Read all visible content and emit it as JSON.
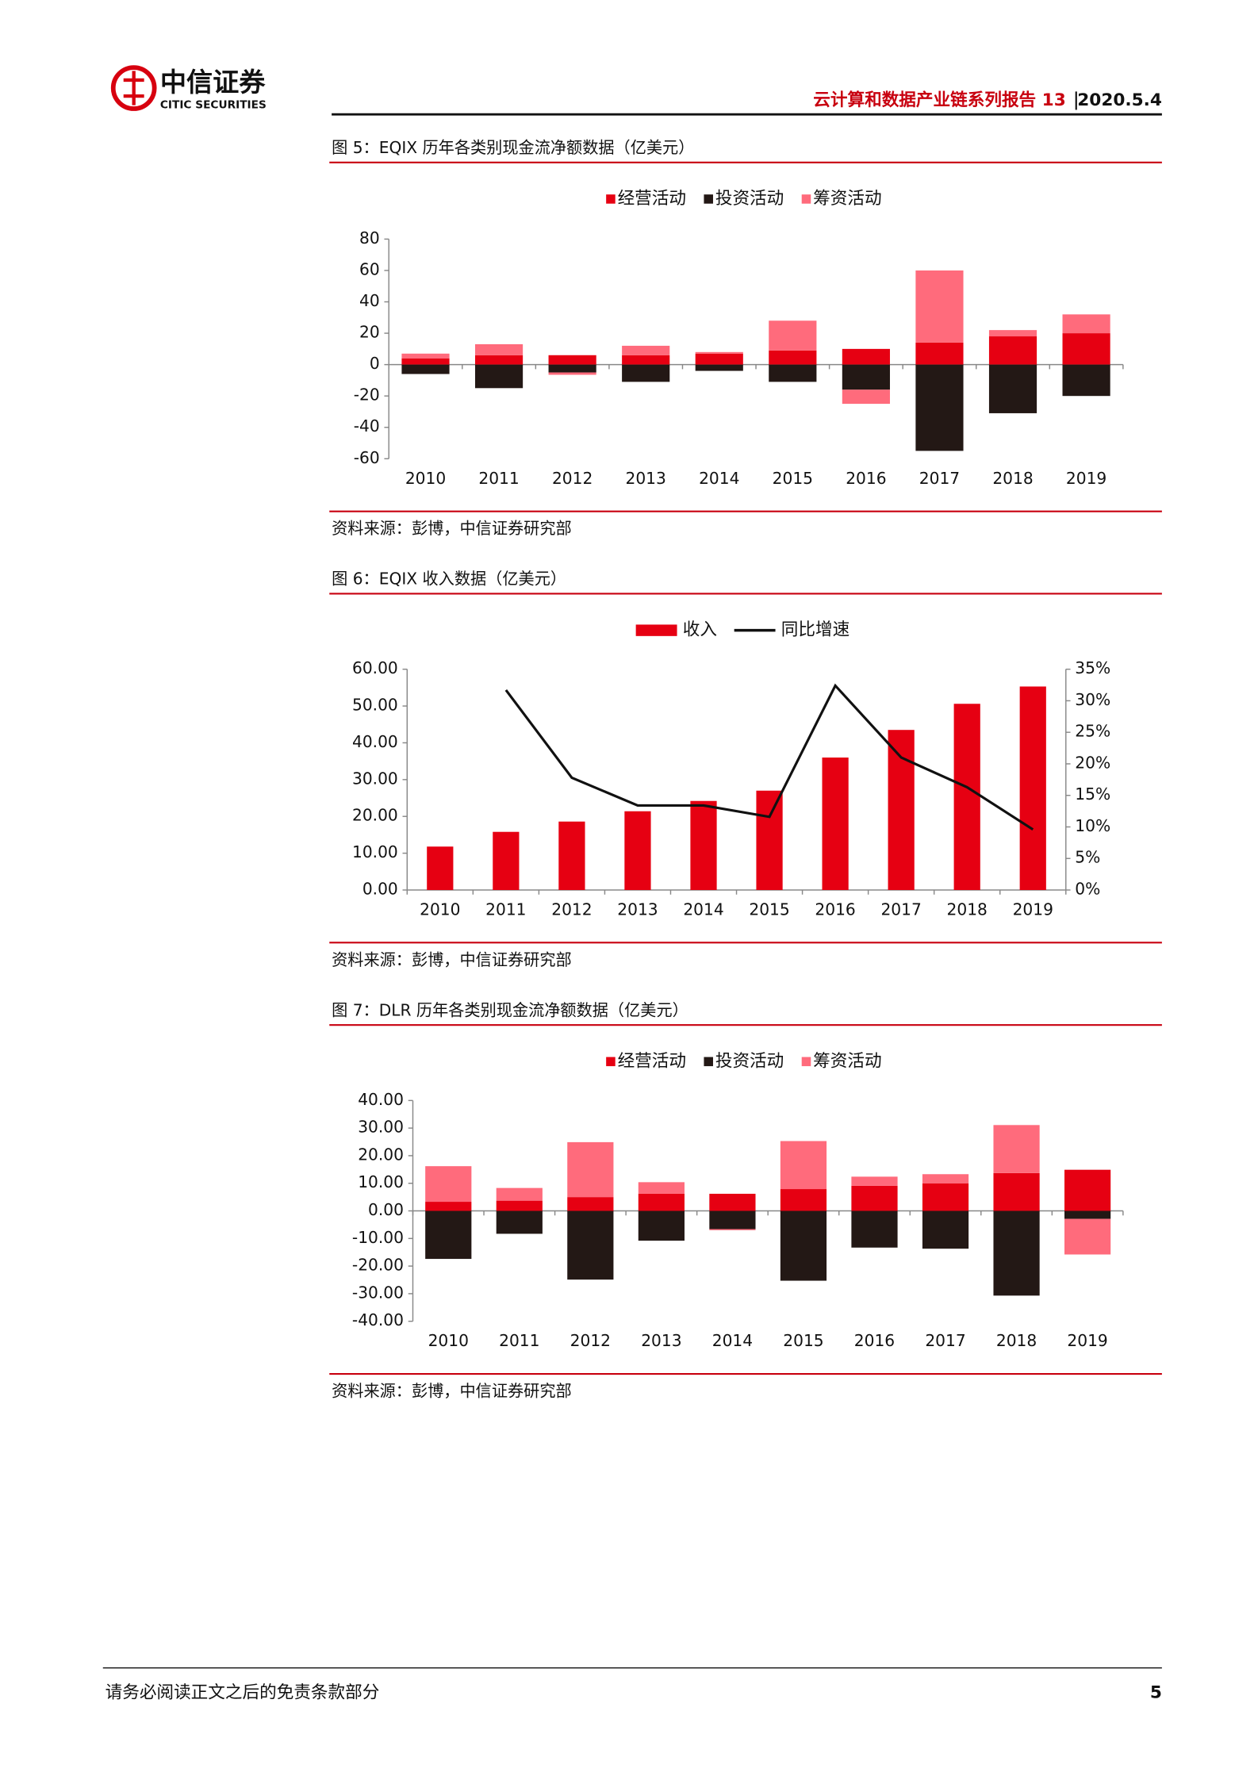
{
  "header": {
    "brand": "中信证券",
    "brand_en": "CITIC SECURITIES",
    "report": "云计算和数据产业链系列报告 13",
    "date": "2020.5.4"
  },
  "chart_data": [
    {
      "type": "stacked",
      "title": "图 5：EQIX 历年各类别现金流净额数据（亿美元）",
      "source": "资料来源：彭博，中信证券研究部",
      "categories": [
        "2010",
        "2011",
        "2012",
        "2013",
        "2014",
        "2015",
        "2016",
        "2017",
        "2018",
        "2019"
      ],
      "series": [
        {
          "name": "经营活动",
          "color": "#e60012",
          "values": [
            4,
            6,
            6,
            6,
            7,
            9,
            10,
            14,
            18,
            20
          ]
        },
        {
          "name": "投资活动",
          "color": "#231815",
          "values": [
            -6,
            -15,
            -5,
            -11,
            -4,
            -11,
            -16,
            -55,
            -31,
            -20
          ]
        },
        {
          "name": "筹资活动",
          "color": "#ff6b7c",
          "values": [
            3,
            7,
            -1.5,
            6,
            1,
            19,
            -9,
            46,
            4,
            12
          ]
        }
      ],
      "ylim": [
        -60,
        80
      ],
      "yticks": [
        -60,
        -40,
        -20,
        0,
        20,
        40,
        60,
        80
      ]
    },
    {
      "type": "combo",
      "title": "图 6：EQIX 收入数据（亿美元）",
      "source": "资料来源：彭博，中信证券研究部",
      "categories": [
        "2010",
        "2011",
        "2012",
        "2013",
        "2014",
        "2015",
        "2016",
        "2017",
        "2018",
        "2019"
      ],
      "series": [
        {
          "name": "收入",
          "color": "#e60012",
          "values": [
            11.8,
            15.8,
            18.6,
            21.4,
            24.2,
            27.0,
            36.0,
            43.5,
            50.6,
            55.3
          ]
        },
        {
          "name": "同比增速",
          "color": "#111111",
          "axis": "y2",
          "values": [
            null,
            31.7,
            17.8,
            13.4,
            13.4,
            11.6,
            32.4,
            21.0,
            16.3,
            9.6
          ]
        }
      ],
      "ylim": [
        0,
        60
      ],
      "yticks": [
        {
          "value": 0,
          "label": "0.00"
        },
        {
          "value": 10,
          "label": "10.00"
        },
        {
          "value": 20,
          "label": "20.00"
        },
        {
          "value": 30,
          "label": "30.00"
        },
        {
          "value": 40,
          "label": "40.00"
        },
        {
          "value": 50,
          "label": "50.00"
        },
        {
          "value": 60,
          "label": "60.00"
        }
      ],
      "y2lim": [
        0,
        35
      ],
      "y2ticks": [
        {
          "value": 0,
          "label": "0%"
        },
        {
          "value": 5,
          "label": "5%"
        },
        {
          "value": 10,
          "label": "10%"
        },
        {
          "value": 15,
          "label": "15%"
        },
        {
          "value": 20,
          "label": "20%"
        },
        {
          "value": 25,
          "label": "25%"
        },
        {
          "value": 30,
          "label": "30%"
        },
        {
          "value": 35,
          "label": "35%"
        }
      ]
    },
    {
      "type": "stacked",
      "title": "图 7：DLR 历年各类别现金流净额数据（亿美元）",
      "source": "资料来源：彭博，中信证券研究部",
      "categories": [
        "2010",
        "2011",
        "2012",
        "2013",
        "2014",
        "2015",
        "2016",
        "2017",
        "2018",
        "2019"
      ],
      "series": [
        {
          "name": "经营活动",
          "color": "#e60012",
          "values": [
            3.3,
            3.7,
            5.0,
            6.2,
            6.2,
            7.9,
            9.1,
            10.0,
            13.7,
            14.9
          ]
        },
        {
          "name": "投资活动",
          "color": "#231815",
          "values": [
            -17.4,
            -8.3,
            -24.9,
            -10.8,
            -6.6,
            -25.3,
            -13.3,
            -13.7,
            -30.7,
            -2.9
          ]
        },
        {
          "name": "筹资活动",
          "color": "#ff6b7c",
          "values": [
            12.9,
            4.6,
            19.9,
            4.2,
            -0.4,
            17.4,
            3.3,
            3.3,
            17.4,
            -12.9
          ]
        }
      ],
      "ylim": [
        -40,
        40
      ],
      "yticks": [
        {
          "value": -40,
          "label": "-40.00"
        },
        {
          "value": -30,
          "label": "-30.00"
        },
        {
          "value": -20,
          "label": "-20.00"
        },
        {
          "value": -10,
          "label": "-10.00"
        },
        {
          "value": 0,
          "label": "0.00"
        },
        {
          "value": 10,
          "label": "10.00"
        },
        {
          "value": 20,
          "label": "20.00"
        },
        {
          "value": 30,
          "label": "30.00"
        },
        {
          "value": 40,
          "label": "40.00"
        }
      ]
    }
  ],
  "footer": {
    "disclaimer": "请务必阅读正文之后的免责条款部分",
    "page": "5"
  }
}
